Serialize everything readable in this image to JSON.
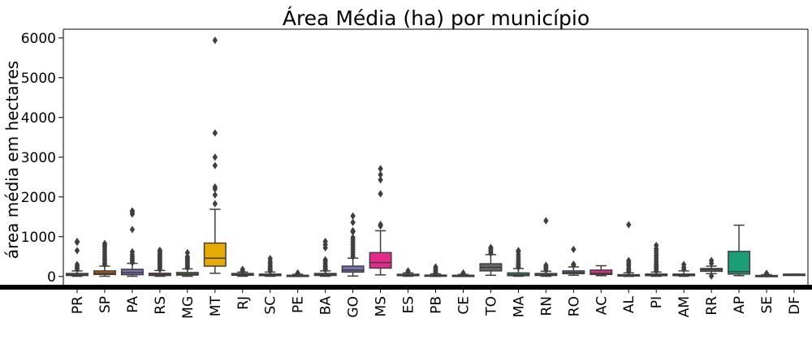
{
  "chart_data": {
    "type": "box",
    "title": "Área Média (ha) por município",
    "xlabel": "",
    "ylabel": "área média em hectares",
    "ylim": [
      -250,
      6220
    ],
    "yticks": [
      0,
      1000,
      2000,
      3000,
      4000,
      5000,
      6000
    ],
    "grid": false,
    "categories": [
      "PR",
      "SP",
      "PA",
      "RS",
      "MG",
      "MT",
      "RJ",
      "SC",
      "PE",
      "BA",
      "GO",
      "MS",
      "ES",
      "PB",
      "CE",
      "TO",
      "MA",
      "RN",
      "RO",
      "AC",
      "AL",
      "PI",
      "AM",
      "RR",
      "AP",
      "SE",
      "DF"
    ],
    "colors": {
      "PR": "#1b9e77",
      "SP": "#d95f02",
      "PA": "#7570b3",
      "RS": "#e7298a",
      "MG": "#66a61e",
      "MT": "#e6ab02",
      "RJ": "#a6761d",
      "SC": "#666666",
      "PE": "#1b9e77",
      "BA": "#d95f02",
      "GO": "#7570b3",
      "MS": "#e7298a",
      "ES": "#66a61e",
      "PB": "#e6ab02",
      "CE": "#a6761d",
      "TO": "#666666",
      "MA": "#1b9e77",
      "RN": "#d95f02",
      "RO": "#7570b3",
      "AC": "#e7298a",
      "AL": "#66a61e",
      "PI": "#e6ab02",
      "AM": "#a6761d",
      "RR": "#666666",
      "AP": "#1b9e77",
      "SE": "#d95f02",
      "DF": "#7570b3"
    },
    "boxes": [
      {
        "category": "PR",
        "whisker_low": 5,
        "q1": 25,
        "median": 45,
        "q3": 75,
        "whisker_high": 140,
        "outliers": [
          180,
          220,
          260,
          300,
          880,
          860,
          650
        ]
      },
      {
        "category": "SP",
        "whisker_low": 5,
        "q1": 50,
        "median": 85,
        "q3": 140,
        "whisker_high": 260,
        "outliers": [
          300,
          340,
          400,
          450,
          500,
          560,
          620,
          680,
          740,
          780,
          830
        ]
      },
      {
        "category": "PA",
        "whisker_low": 5,
        "q1": 45,
        "median": 100,
        "q3": 180,
        "whisker_high": 330,
        "outliers": [
          350,
          400,
          450,
          500,
          550,
          620,
          1180,
          1570,
          1620,
          1650
        ]
      },
      {
        "category": "RS",
        "whisker_low": 5,
        "q1": 25,
        "median": 45,
        "q3": 80,
        "whisker_high": 150,
        "outliers": [
          180,
          220,
          260,
          300,
          340,
          380,
          420,
          460,
          500,
          540,
          580,
          620,
          660
        ]
      },
      {
        "category": "MG",
        "whisker_low": 5,
        "q1": 35,
        "median": 60,
        "q3": 100,
        "whisker_high": 190,
        "outliers": [
          220,
          260,
          300,
          340,
          380,
          420,
          460,
          500,
          600
        ]
      },
      {
        "category": "MT",
        "whisker_low": 80,
        "q1": 260,
        "median": 460,
        "q3": 840,
        "whisker_high": 1690,
        "outliers": [
          1830,
          2050,
          2200,
          2250,
          2790,
          3000,
          3610,
          5940
        ]
      },
      {
        "category": "RJ",
        "whisker_low": 5,
        "q1": 30,
        "median": 50,
        "q3": 75,
        "whisker_high": 110,
        "outliers": [
          140,
          180
        ]
      },
      {
        "category": "SC",
        "whisker_low": 5,
        "q1": 20,
        "median": 35,
        "q3": 60,
        "whisker_high": 110,
        "outliers": [
          140,
          170,
          200,
          240,
          280,
          330,
          380,
          450
        ]
      },
      {
        "category": "PE",
        "whisker_low": 2,
        "q1": 10,
        "median": 18,
        "q3": 30,
        "whisker_high": 55,
        "outliers": [
          70,
          90
        ]
      },
      {
        "category": "BA",
        "whisker_low": 5,
        "q1": 25,
        "median": 45,
        "q3": 75,
        "whisker_high": 140,
        "outliers": [
          170,
          200,
          240,
          280,
          330,
          380,
          420,
          720,
          800,
          880
        ]
      },
      {
        "category": "GO",
        "whisker_low": 10,
        "q1": 110,
        "median": 160,
        "q3": 260,
        "whisker_high": 460,
        "outliers": [
          500,
          560,
          620,
          680,
          740,
          800,
          860,
          920,
          980,
          1120,
          1150,
          1360,
          1520
        ]
      },
      {
        "category": "MS",
        "whisker_low": 40,
        "q1": 210,
        "median": 350,
        "q3": 600,
        "whisker_high": 1150,
        "outliers": [
          1270,
          1310,
          2080,
          2430,
          2560,
          2710
        ]
      },
      {
        "category": "ES",
        "whisker_low": 5,
        "q1": 20,
        "median": 35,
        "q3": 55,
        "whisker_high": 90,
        "outliers": [
          110,
          140
        ]
      },
      {
        "category": "PB",
        "whisker_low": 2,
        "q1": 12,
        "median": 20,
        "q3": 35,
        "whisker_high": 65,
        "outliers": [
          90,
          120,
          160,
          200,
          240
        ]
      },
      {
        "category": "CE",
        "whisker_low": 2,
        "q1": 10,
        "median": 18,
        "q3": 30,
        "whisker_high": 50,
        "outliers": [
          70,
          90
        ]
      },
      {
        "category": "TO",
        "whisker_low": 30,
        "q1": 140,
        "median": 230,
        "q3": 320,
        "whisker_high": 550,
        "outliers": [
          580,
          620,
          660,
          700,
          730
        ]
      },
      {
        "category": "MA",
        "whisker_low": 5,
        "q1": 20,
        "median": 45,
        "q3": 90,
        "whisker_high": 200,
        "outliers": [
          230,
          270,
          310,
          360,
          420,
          480,
          550,
          620,
          650
        ]
      },
      {
        "category": "RN",
        "whisker_low": 5,
        "q1": 25,
        "median": 45,
        "q3": 75,
        "whisker_high": 130,
        "outliers": [
          160,
          200,
          240,
          280,
          1400
        ]
      },
      {
        "category": "RO",
        "whisker_low": 30,
        "q1": 70,
        "median": 100,
        "q3": 140,
        "whisker_high": 240,
        "outliers": [
          280,
          310,
          680
        ]
      },
      {
        "category": "AC",
        "whisker_low": 20,
        "q1": 50,
        "median": 80,
        "q3": 160,
        "whisker_high": 270,
        "outliers": []
      },
      {
        "category": "AL",
        "whisker_low": 2,
        "q1": 12,
        "median": 25,
        "q3": 45,
        "whisker_high": 90,
        "outliers": [
          120,
          160,
          200,
          260,
          300,
          350,
          400,
          1300
        ]
      },
      {
        "category": "PI",
        "whisker_low": 5,
        "q1": 20,
        "median": 35,
        "q3": 60,
        "whisker_high": 110,
        "outliers": [
          140,
          180,
          220,
          260,
          300,
          350,
          400,
          460,
          520,
          580,
          640,
          700,
          780
        ]
      },
      {
        "category": "AM",
        "whisker_low": 5,
        "q1": 20,
        "median": 35,
        "q3": 60,
        "whisker_high": 140,
        "outliers": [
          180,
          230,
          300
        ]
      },
      {
        "category": "RR",
        "whisker_low": 70,
        "q1": 130,
        "median": 170,
        "q3": 200,
        "whisker_high": 260,
        "outliers": [
          10,
          330,
          400
        ]
      },
      {
        "category": "AP",
        "whisker_low": 20,
        "q1": 60,
        "median": 120,
        "q3": 630,
        "whisker_high": 1290,
        "outliers": []
      },
      {
        "category": "SE",
        "whisker_low": 2,
        "q1": 8,
        "median": 15,
        "q3": 25,
        "whisker_high": 45,
        "outliers": [
          60,
          80
        ]
      },
      {
        "category": "DF",
        "whisker_low": 55,
        "q1": 55,
        "median": 55,
        "q3": 55,
        "whisker_high": 55,
        "outliers": []
      }
    ]
  }
}
